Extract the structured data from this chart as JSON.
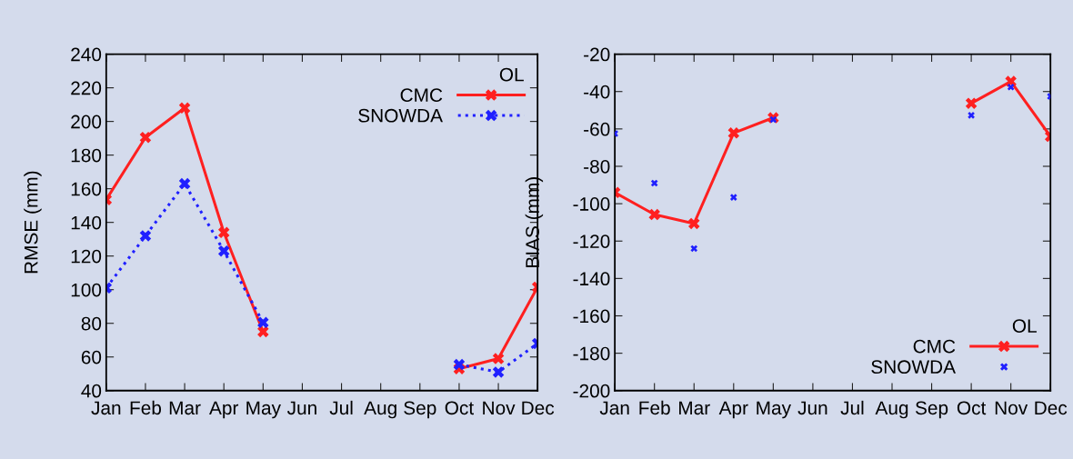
{
  "chart_data": [
    {
      "type": "line",
      "ylabel": "RMSE (mm)",
      "categories": [
        "Jan",
        "Feb",
        "Mar",
        "Apr",
        "May",
        "Jun",
        "Jul",
        "Aug",
        "Sep",
        "Oct",
        "Nov",
        "Dec"
      ],
      "ylim": [
        40,
        240
      ],
      "yticks": [
        40,
        60,
        80,
        100,
        120,
        140,
        160,
        180,
        200,
        220,
        240
      ],
      "legend": "top right",
      "legend_title": "OL",
      "marker": "cross",
      "grid": false,
      "series": [
        {
          "name": "CMC",
          "color": "#ff2020",
          "line_style": "solid",
          "values": [
            153.5,
            190.5,
            208,
            134,
            75,
            null,
            null,
            null,
            null,
            53,
            59,
            101.5
          ]
        },
        {
          "name": "SNOWDA",
          "color": "#2020ff",
          "line_style": "dotted",
          "values": [
            101,
            132,
            163,
            123,
            80.5,
            null,
            null,
            null,
            null,
            55.5,
            51,
            68
          ]
        }
      ]
    },
    {
      "type": "line",
      "ylabel": "BIAS (mm)",
      "categories": [
        "Jan",
        "Feb",
        "Mar",
        "Apr",
        "May",
        "Jun",
        "Jul",
        "Aug",
        "Sep",
        "Oct",
        "Nov",
        "Dec"
      ],
      "ylim": [
        -200,
        -20
      ],
      "yticks": [
        -200,
        -180,
        -160,
        -140,
        -120,
        -100,
        -80,
        -60,
        -40,
        -20
      ],
      "legend": "bottom right",
      "legend_title": "OL",
      "marker": "cross",
      "grid": false,
      "series": [
        {
          "name": "CMC",
          "color": "#ff2020",
          "line_style": "solid",
          "values": [
            -94,
            -105.8,
            -110.6,
            -62.2,
            -54,
            null,
            null,
            null,
            null,
            -46.3,
            -34.6,
            -64
          ]
        },
        {
          "name": "SNOWDA",
          "color": "#2020ff",
          "type": "scatter",
          "values": [
            -62.5,
            -89,
            -124,
            -96.6,
            -55,
            null,
            null,
            null,
            null,
            -52.7,
            -37.6,
            -42.6
          ]
        }
      ]
    }
  ]
}
